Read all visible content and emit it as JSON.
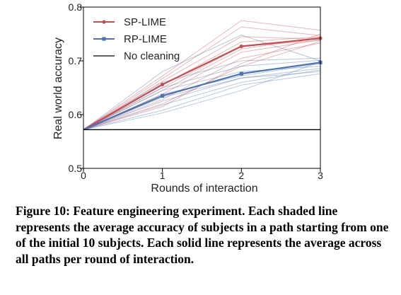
{
  "chart_data": {
    "type": "line",
    "xlabel": "Rounds of interaction",
    "ylabel": "Real world accuracy",
    "x": [
      0,
      1,
      2,
      3
    ],
    "xticks": [
      "0",
      "1",
      "2",
      "3"
    ],
    "yticks": [
      "0.5",
      "0.6",
      "0.7",
      "0.8"
    ],
    "xlim": [
      0,
      3
    ],
    "ylim": [
      0.5,
      0.8
    ],
    "grid": false,
    "legend_position": "top-left",
    "series": [
      {
        "name": "SP-LIME",
        "color": "#c44e52",
        "values": [
          0.572,
          0.656,
          0.727,
          0.742
        ]
      },
      {
        "name": "RP-LIME",
        "color": "#4c72b0",
        "values": [
          0.572,
          0.635,
          0.676,
          0.697
        ]
      },
      {
        "name": "No cleaning",
        "color": "#000000",
        "values": [
          0.572,
          0.572,
          0.572,
          0.572
        ]
      }
    ],
    "shaded_series": [
      {
        "group": "SP-LIME",
        "values": [
          0.572,
          0.672,
          0.775,
          0.757
        ]
      },
      {
        "group": "SP-LIME",
        "values": [
          0.572,
          0.667,
          0.763,
          0.747
        ]
      },
      {
        "group": "SP-LIME",
        "values": [
          0.572,
          0.662,
          0.745,
          0.74
        ]
      },
      {
        "group": "SP-LIME",
        "values": [
          0.572,
          0.655,
          0.735,
          0.745
        ]
      },
      {
        "group": "SP-LIME",
        "values": [
          0.572,
          0.65,
          0.727,
          0.738
        ]
      },
      {
        "group": "SP-LIME",
        "values": [
          0.572,
          0.645,
          0.722,
          0.744
        ]
      },
      {
        "group": "SP-LIME",
        "values": [
          0.572,
          0.638,
          0.716,
          0.739
        ]
      },
      {
        "group": "SP-LIME",
        "values": [
          0.572,
          0.628,
          0.705,
          0.733
        ]
      },
      {
        "group": "SP-LIME",
        "values": [
          0.572,
          0.62,
          0.69,
          0.736
        ]
      },
      {
        "group": "SP-LIME",
        "values": [
          0.572,
          0.615,
          0.695,
          0.75
        ]
      },
      {
        "group": "RP-LIME",
        "values": [
          0.572,
          0.68,
          0.748,
          0.7
        ]
      },
      {
        "group": "RP-LIME",
        "values": [
          0.572,
          0.66,
          0.7,
          0.705
        ]
      },
      {
        "group": "RP-LIME",
        "values": [
          0.572,
          0.65,
          0.69,
          0.701
        ]
      },
      {
        "group": "RP-LIME",
        "values": [
          0.572,
          0.645,
          0.68,
          0.69
        ]
      },
      {
        "group": "RP-LIME",
        "values": [
          0.572,
          0.638,
          0.672,
          0.695
        ]
      },
      {
        "group": "RP-LIME",
        "values": [
          0.572,
          0.632,
          0.668,
          0.686
        ]
      },
      {
        "group": "RP-LIME",
        "values": [
          0.572,
          0.625,
          0.668,
          0.68
        ]
      },
      {
        "group": "RP-LIME",
        "values": [
          0.572,
          0.618,
          0.66,
          0.683
        ]
      },
      {
        "group": "RP-LIME",
        "values": [
          0.572,
          0.608,
          0.655,
          0.676
        ]
      },
      {
        "group": "RP-LIME",
        "values": [
          0.572,
          0.603,
          0.645,
          0.698
        ]
      }
    ]
  },
  "caption": "Figure 10: Feature engineering experiment. Each shaded line represents the average accuracy of subjects in a path starting from one of the initial 10 subjects. Each solid line represents the average across all paths per round of interaction."
}
